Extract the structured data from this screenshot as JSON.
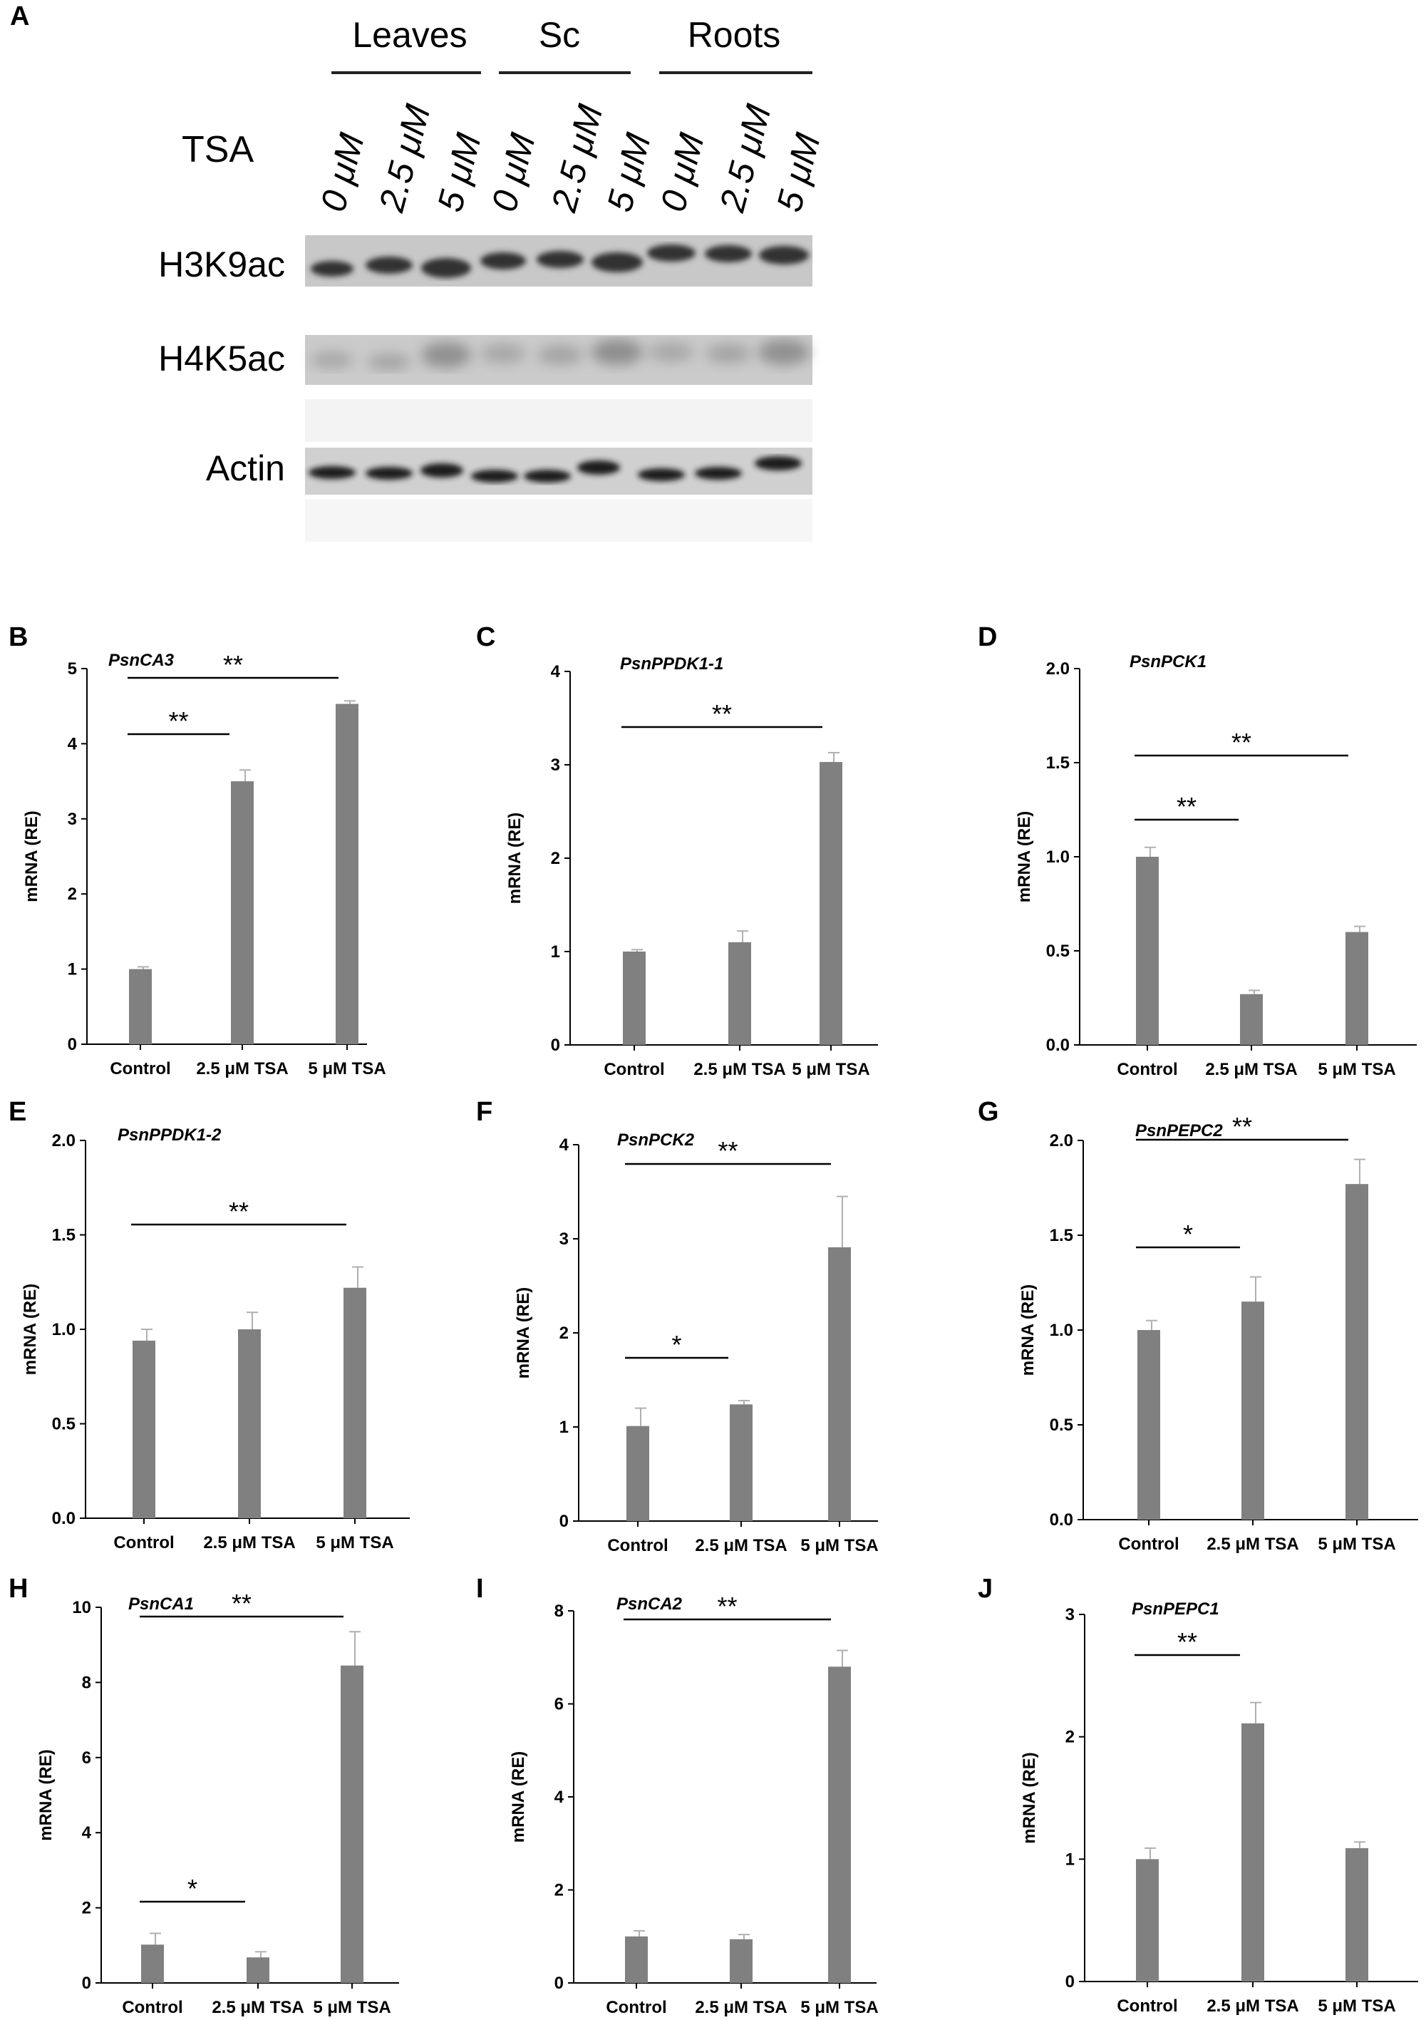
{
  "colors": {
    "bar": "#808080",
    "axis": "#000000",
    "error": "#b0b0b0"
  },
  "blot": {
    "panel": "A",
    "treatment_label": "TSA",
    "groups": [
      {
        "name": "Leaves",
        "lanes": [
          "0 μM",
          "2.5 μM",
          "5 μM"
        ]
      },
      {
        "name": "Sc",
        "lanes": [
          "0 μM",
          "2.5 μM",
          "5 μM"
        ]
      },
      {
        "name": "Roots",
        "lanes": [
          "0 μM",
          "2.5 μM",
          "5 μM"
        ]
      }
    ],
    "rows": [
      "H3K9ac",
      "H4K5ac",
      "Actin"
    ]
  },
  "chart_data": [
    {
      "panel": "B",
      "type": "bar",
      "title": "PsnCA3",
      "ylabel": "mRNA (RE)",
      "categories": [
        "Control",
        "2.5 μM TSA",
        "5 μM TSA"
      ],
      "values": [
        1.0,
        3.5,
        4.53
      ],
      "errors": [
        0.03,
        0.15,
        0.04
      ],
      "ylim": [
        0,
        5
      ],
      "yticks": [
        0,
        1,
        2,
        3,
        4,
        5
      ],
      "significance": [
        {
          "from": 0,
          "to": 1,
          "label": "**"
        },
        {
          "from": 0,
          "to": 2,
          "label": "**"
        }
      ]
    },
    {
      "panel": "C",
      "type": "bar",
      "title": "PsnPPDK1-1",
      "ylabel": "mRNA (RE)",
      "categories": [
        "Control",
        "2.5 μM TSA",
        "5 μM TSA"
      ],
      "values": [
        1.0,
        1.1,
        3.03
      ],
      "errors": [
        0.02,
        0.12,
        0.1
      ],
      "ylim": [
        0,
        4
      ],
      "yticks": [
        0,
        1,
        2,
        3,
        4
      ],
      "significance": [
        {
          "from": 0,
          "to": 2,
          "label": "**"
        }
      ]
    },
    {
      "panel": "D",
      "type": "bar",
      "title": "PsnPCK1",
      "ylabel": "mRNA (RE)",
      "categories": [
        "Control",
        "2.5 μM TSA",
        "5 μM TSA"
      ],
      "values": [
        1.0,
        0.27,
        0.6
      ],
      "errors": [
        0.05,
        0.02,
        0.03
      ],
      "ylim": [
        0,
        2.0
      ],
      "yticks": [
        "0.0",
        "0.5",
        "1.0",
        "1.5",
        "2.0"
      ],
      "significance": [
        {
          "from": 0,
          "to": 1,
          "label": "**"
        },
        {
          "from": 0,
          "to": 2,
          "label": "**"
        }
      ]
    },
    {
      "panel": "E",
      "type": "bar",
      "title": "PsnPPDK1-2",
      "ylabel": "mRNA (RE)",
      "categories": [
        "Control",
        "2.5 μM TSA",
        "5 μM TSA"
      ],
      "values": [
        0.94,
        1.0,
        1.22
      ],
      "errors": [
        0.06,
        0.09,
        0.11
      ],
      "ylim": [
        0,
        2.0
      ],
      "yticks": [
        "0.0",
        "0.5",
        "1.0",
        "1.5",
        "2.0"
      ],
      "significance": [
        {
          "from": 0,
          "to": 2,
          "label": "**"
        }
      ]
    },
    {
      "panel": "F",
      "type": "bar",
      "title": "PsnPCK2",
      "ylabel": "mRNA (RE)",
      "categories": [
        "Control",
        "2.5 μM TSA",
        "5 μM TSA"
      ],
      "values": [
        1.01,
        1.24,
        2.91
      ],
      "errors": [
        0.19,
        0.04,
        0.54
      ],
      "ylim": [
        0,
        4
      ],
      "yticks": [
        0,
        1,
        2,
        3,
        4
      ],
      "significance": [
        {
          "from": 0,
          "to": 1,
          "label": "*"
        },
        {
          "from": 0,
          "to": 2,
          "label": "**"
        }
      ]
    },
    {
      "panel": "G",
      "type": "bar",
      "title": "PsnPEPC2",
      "ylabel": "mRNA (RE)",
      "categories": [
        "Control",
        "2.5 μM TSA",
        "5 μM TSA"
      ],
      "values": [
        1.0,
        1.15,
        1.77
      ],
      "errors": [
        0.05,
        0.13,
        0.13
      ],
      "ylim": [
        0,
        2.0
      ],
      "yticks": [
        "0.0",
        "0.5",
        "1.0",
        "1.5",
        "2.0"
      ],
      "significance": [
        {
          "from": 0,
          "to": 1,
          "label": "*"
        },
        {
          "from": 0,
          "to": 2,
          "label": "**"
        }
      ]
    },
    {
      "panel": "H",
      "type": "bar",
      "title": "PsnCA1",
      "ylabel": "mRNA (RE)",
      "categories": [
        "Control",
        "2.5 μM TSA",
        "5 μM TSA"
      ],
      "values": [
        1.02,
        0.68,
        8.45
      ],
      "errors": [
        0.3,
        0.15,
        0.9
      ],
      "ylim": [
        0,
        10
      ],
      "yticks": [
        0,
        2,
        4,
        6,
        8,
        10
      ],
      "significance": [
        {
          "from": 0,
          "to": 1,
          "label": "*"
        },
        {
          "from": 0,
          "to": 2,
          "label": "**"
        }
      ]
    },
    {
      "panel": "I",
      "type": "bar",
      "title": "PsnCA2",
      "ylabel": "mRNA (RE)",
      "categories": [
        "Control",
        "2.5 μM TSA",
        "5 μM TSA"
      ],
      "values": [
        1.0,
        0.94,
        6.8
      ],
      "errors": [
        0.12,
        0.1,
        0.35
      ],
      "ylim": [
        0,
        8
      ],
      "yticks": [
        0,
        2,
        4,
        6,
        8
      ],
      "significance": [
        {
          "from": 0,
          "to": 2,
          "label": "**"
        }
      ]
    },
    {
      "panel": "J",
      "type": "bar",
      "title": "PsnPEPC1",
      "ylabel": "mRNA (RE)",
      "categories": [
        "Control",
        "2.5 μM TSA",
        "5 μM TSA"
      ],
      "values": [
        1.0,
        2.11,
        1.09
      ],
      "errors": [
        0.09,
        0.17,
        0.05
      ],
      "ylim": [
        0,
        3
      ],
      "yticks": [
        0,
        1,
        2,
        3
      ],
      "significance": [
        {
          "from": 0,
          "to": 1,
          "label": "**"
        }
      ]
    }
  ]
}
